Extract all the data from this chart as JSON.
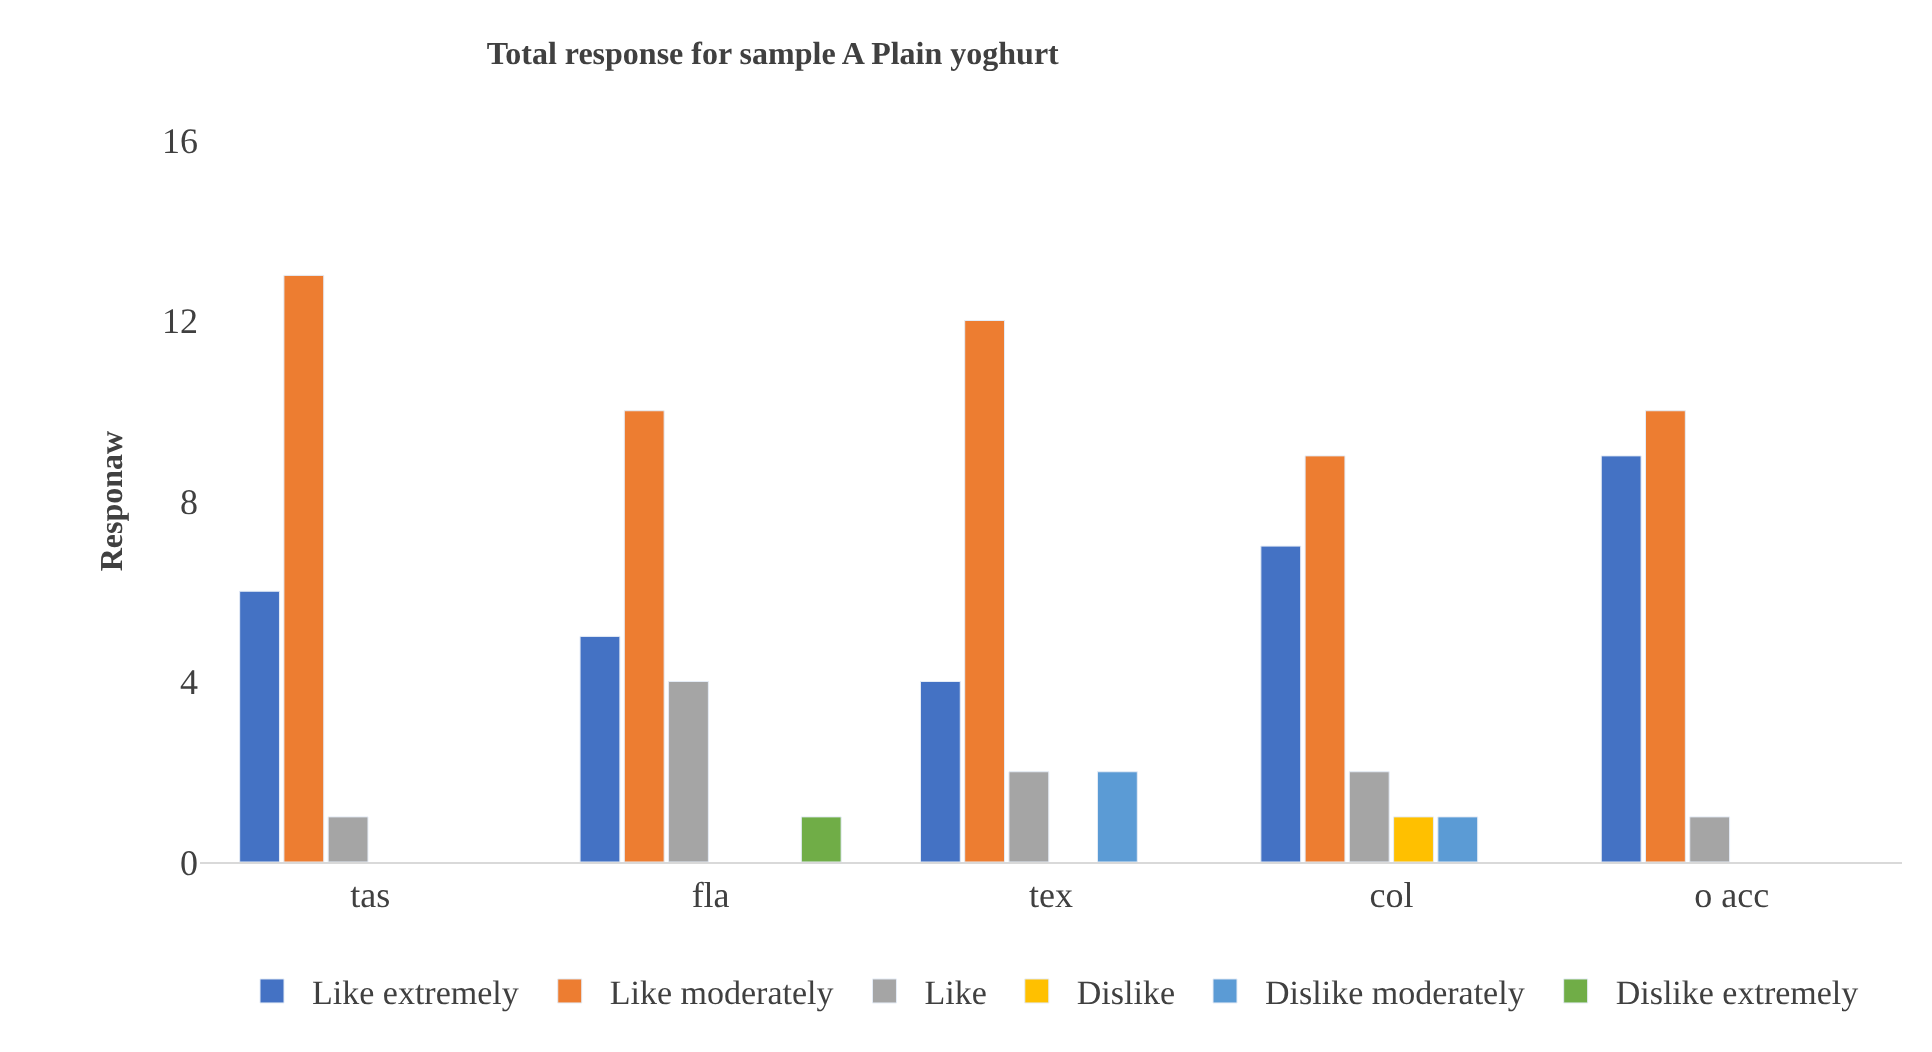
{
  "chart_data": {
    "type": "bar",
    "title": "Total response for sample A Plain yoghurt",
    "ylabel": "Responaw",
    "categories": [
      "tas",
      "fla",
      "tex",
      "col",
      "o acc"
    ],
    "series": [
      {
        "name": "Like extremely",
        "color": "#4472c4",
        "values": [
          6,
          5,
          4,
          7,
          9
        ]
      },
      {
        "name": "Like moderately",
        "color": "#ed7d31",
        "values": [
          13,
          10,
          12,
          9,
          10
        ]
      },
      {
        "name": "Like",
        "color": "#a5a5a5",
        "values": [
          1,
          4,
          2,
          2,
          1
        ]
      },
      {
        "name": "Dislike",
        "color": "#ffc000",
        "values": [
          null,
          null,
          null,
          1,
          null
        ]
      },
      {
        "name": "Dislike moderately",
        "color": "#5b9bd5",
        "values": [
          null,
          null,
          2,
          1,
          null
        ]
      },
      {
        "name": "Dislike extremely",
        "color": "#70ad47",
        "values": [
          null,
          1,
          null,
          null,
          null
        ]
      }
    ],
    "ylim": [
      0,
      16
    ],
    "yticks": [
      0,
      4,
      8,
      12,
      16
    ],
    "legend": "bottom"
  }
}
